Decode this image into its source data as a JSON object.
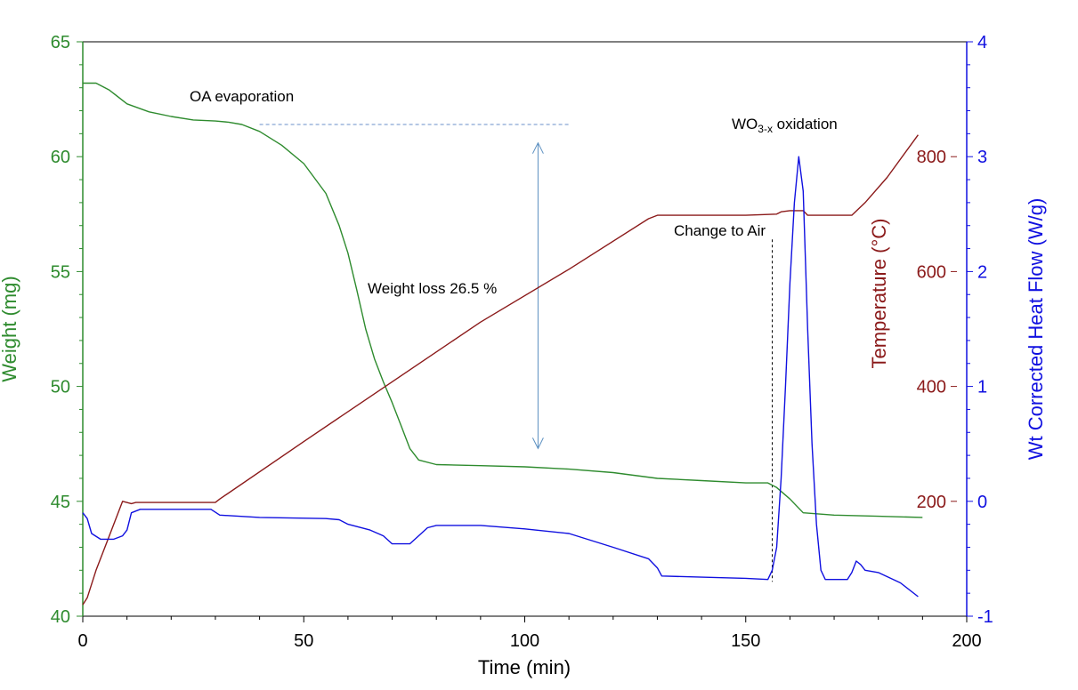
{
  "chart_data": {
    "type": "line",
    "x_axis": {
      "label": "Time (min)",
      "range": [
        0,
        200
      ],
      "ticks": [
        0,
        50,
        100,
        150,
        200
      ]
    },
    "y_axes": {
      "weight": {
        "label": "Weight (mg)",
        "range": [
          40,
          65
        ],
        "ticks": [
          40,
          45,
          50,
          55,
          60,
          65
        ],
        "color": "#2e8b2e"
      },
      "temperature": {
        "label": "Temperature (°C)",
        "ticks": [
          200,
          400,
          600,
          800
        ],
        "color": "#8b1a1a"
      },
      "heatflow": {
        "label": "Wt Corrected Heat Flow (W/g)",
        "range": [
          -1,
          4
        ],
        "ticks": [
          -1,
          0,
          1,
          2,
          3,
          4
        ],
        "color": "#1010e0"
      }
    },
    "series": [
      {
        "key": "weight",
        "axis": "weight",
        "color": "#2e8b2e",
        "points": [
          [
            0,
            63.2
          ],
          [
            3,
            63.2
          ],
          [
            6,
            62.9
          ],
          [
            10,
            62.3
          ],
          [
            15,
            61.95
          ],
          [
            20,
            61.75
          ],
          [
            25,
            61.6
          ],
          [
            30,
            61.55
          ],
          [
            33,
            61.5
          ],
          [
            36,
            61.4
          ],
          [
            40,
            61.1
          ],
          [
            45,
            60.5
          ],
          [
            50,
            59.7
          ],
          [
            55,
            58.4
          ],
          [
            58,
            57.0
          ],
          [
            60,
            55.8
          ],
          [
            62,
            54.2
          ],
          [
            64,
            52.5
          ],
          [
            66,
            51.2
          ],
          [
            68,
            50.2
          ],
          [
            70,
            49.3
          ],
          [
            72,
            48.3
          ],
          [
            74,
            47.3
          ],
          [
            76,
            46.8
          ],
          [
            80,
            46.6
          ],
          [
            90,
            46.55
          ],
          [
            100,
            46.5
          ],
          [
            110,
            46.4
          ],
          [
            120,
            46.25
          ],
          [
            130,
            46.0
          ],
          [
            140,
            45.9
          ],
          [
            150,
            45.8
          ],
          [
            155,
            45.8
          ],
          [
            157,
            45.6
          ],
          [
            160,
            45.1
          ],
          [
            163,
            44.5
          ],
          [
            170,
            44.4
          ],
          [
            180,
            44.35
          ],
          [
            190,
            44.3
          ]
        ]
      },
      {
        "key": "temperature",
        "axis": "temperature",
        "color": "#8b1a1a",
        "points": [
          [
            0,
            40.5
          ],
          [
            1,
            40.8
          ],
          [
            3,
            42.0
          ],
          [
            6,
            43.5
          ],
          [
            9,
            45.0
          ],
          [
            11,
            44.9
          ],
          [
            12,
            44.95
          ],
          [
            30,
            44.95
          ],
          [
            31,
            45.1
          ],
          [
            50,
            47.6
          ],
          [
            70,
            50.2
          ],
          [
            90,
            52.8
          ],
          [
            110,
            55.1
          ],
          [
            128,
            57.3
          ],
          [
            130,
            57.45
          ],
          [
            140,
            57.45
          ],
          [
            150,
            57.45
          ],
          [
            157,
            57.5
          ],
          [
            158,
            57.6
          ],
          [
            160,
            57.65
          ],
          [
            163,
            57.65
          ],
          [
            164,
            57.45
          ],
          [
            174,
            57.45
          ],
          [
            177,
            58.0
          ],
          [
            182,
            59.1
          ],
          [
            189,
            60.95
          ]
        ]
      },
      {
        "key": "heatflow",
        "axis": "heatflow",
        "color": "#1010e0",
        "points": [
          [
            0,
            -0.1
          ],
          [
            1,
            -0.15
          ],
          [
            2,
            -0.28
          ],
          [
            4,
            -0.33
          ],
          [
            7,
            -0.33
          ],
          [
            9,
            -0.3
          ],
          [
            10,
            -0.25
          ],
          [
            11,
            -0.1
          ],
          [
            13,
            -0.07
          ],
          [
            20,
            -0.07
          ],
          [
            29,
            -0.07
          ],
          [
            31,
            -0.12
          ],
          [
            40,
            -0.14
          ],
          [
            55,
            -0.15
          ],
          [
            58,
            -0.16
          ],
          [
            60,
            -0.2
          ],
          [
            65,
            -0.25
          ],
          [
            68,
            -0.3
          ],
          [
            70,
            -0.37
          ],
          [
            74,
            -0.37
          ],
          [
            76,
            -0.3
          ],
          [
            78,
            -0.23
          ],
          [
            80,
            -0.21
          ],
          [
            90,
            -0.21
          ],
          [
            100,
            -0.24
          ],
          [
            110,
            -0.28
          ],
          [
            120,
            -0.4
          ],
          [
            128,
            -0.5
          ],
          [
            130,
            -0.58
          ],
          [
            131,
            -0.65
          ],
          [
            140,
            -0.66
          ],
          [
            150,
            -0.67
          ],
          [
            155,
            -0.68
          ],
          [
            156,
            -0.6
          ],
          [
            157,
            -0.4
          ],
          [
            158,
            0.2
          ],
          [
            159,
            1.0
          ],
          [
            160,
            1.9
          ],
          [
            161,
            2.6
          ],
          [
            162,
            3.0
          ],
          [
            163,
            2.7
          ],
          [
            164,
            1.5
          ],
          [
            165,
            0.5
          ],
          [
            166,
            -0.2
          ],
          [
            167,
            -0.6
          ],
          [
            168,
            -0.68
          ],
          [
            173,
            -0.68
          ],
          [
            174,
            -0.62
          ],
          [
            175,
            -0.52
          ],
          [
            176,
            -0.55
          ],
          [
            177,
            -0.6
          ],
          [
            180,
            -0.62
          ],
          [
            185,
            -0.71
          ],
          [
            189,
            -0.83
          ]
        ]
      }
    ],
    "annotations": {
      "oa": "OA evaporation",
      "loss": "Weight loss 26.5 %",
      "air": "Change to Air",
      "wo_main": "WO",
      "wo_sub": "3-x",
      "wo_tail": " oxidation"
    }
  }
}
